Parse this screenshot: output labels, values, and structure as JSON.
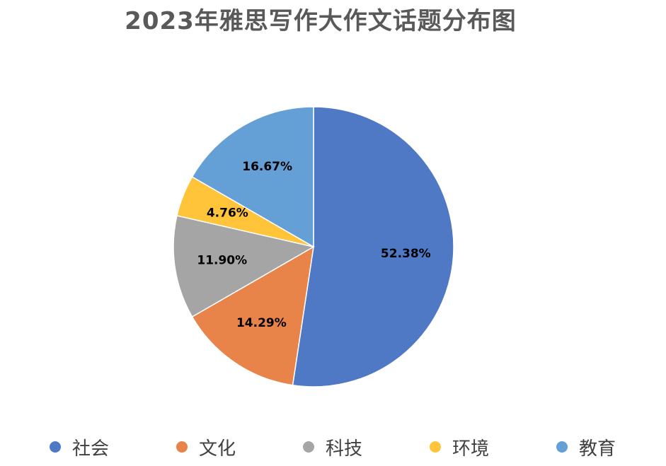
{
  "chart_data": {
    "type": "pie",
    "title": "2023年雅思写作大作文话题分布图",
    "categories": [
      "社会",
      "文化",
      "科技",
      "环境",
      "教育"
    ],
    "values": [
      52.38,
      14.29,
      11.9,
      4.76,
      16.67
    ],
    "labels": [
      "52.38%",
      "14.29%",
      "11.90%",
      "4.76%",
      "16.67%"
    ],
    "colors": [
      "#4F78C5",
      "#E8844A",
      "#A5A5A5",
      "#FFC43A",
      "#649FD6"
    ],
    "legend": "bottom"
  }
}
